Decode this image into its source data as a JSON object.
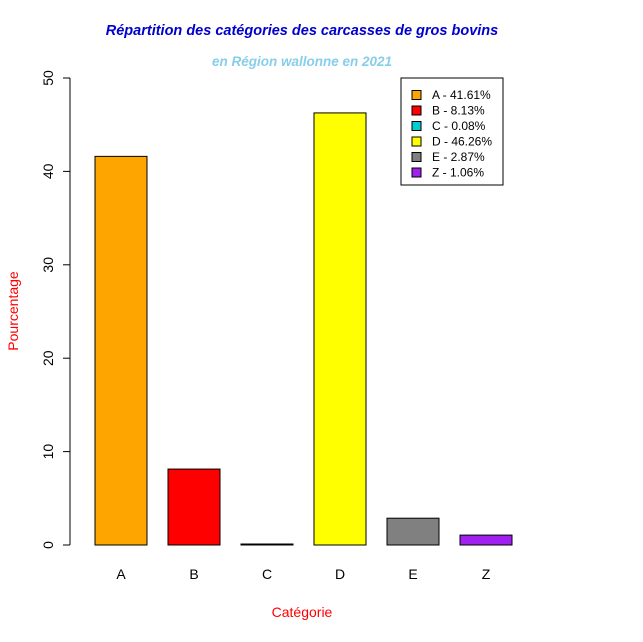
{
  "chart_data": {
    "type": "bar",
    "title": "Répartition des catégories des carcasses de gros bovins",
    "subtitle": "en Région wallonne en 2021",
    "xlabel": "Catégorie",
    "ylabel": "Pourcentage",
    "ylim": [
      0,
      50
    ],
    "yticks": [
      0,
      10,
      20,
      30,
      40,
      50
    ],
    "categories": [
      "A",
      "B",
      "C",
      "D",
      "E",
      "Z"
    ],
    "values": [
      41.61,
      8.13,
      0.08,
      46.26,
      2.87,
      1.06
    ],
    "bar_colors": [
      "#FFA500",
      "#FF0000",
      "#00CED1",
      "#FFFF00",
      "#808080",
      "#A020F0"
    ],
    "legend": {
      "position": "top-right",
      "entries": [
        "A - 41.61%",
        "B - 8.13%",
        "C - 0.08%",
        "D - 46.26%",
        "E - 2.87%",
        "Z - 1.06%"
      ]
    },
    "colors": {
      "title": "#0000CD",
      "subtitle": "#87CEEB",
      "axis_label": "#FF0000"
    }
  }
}
